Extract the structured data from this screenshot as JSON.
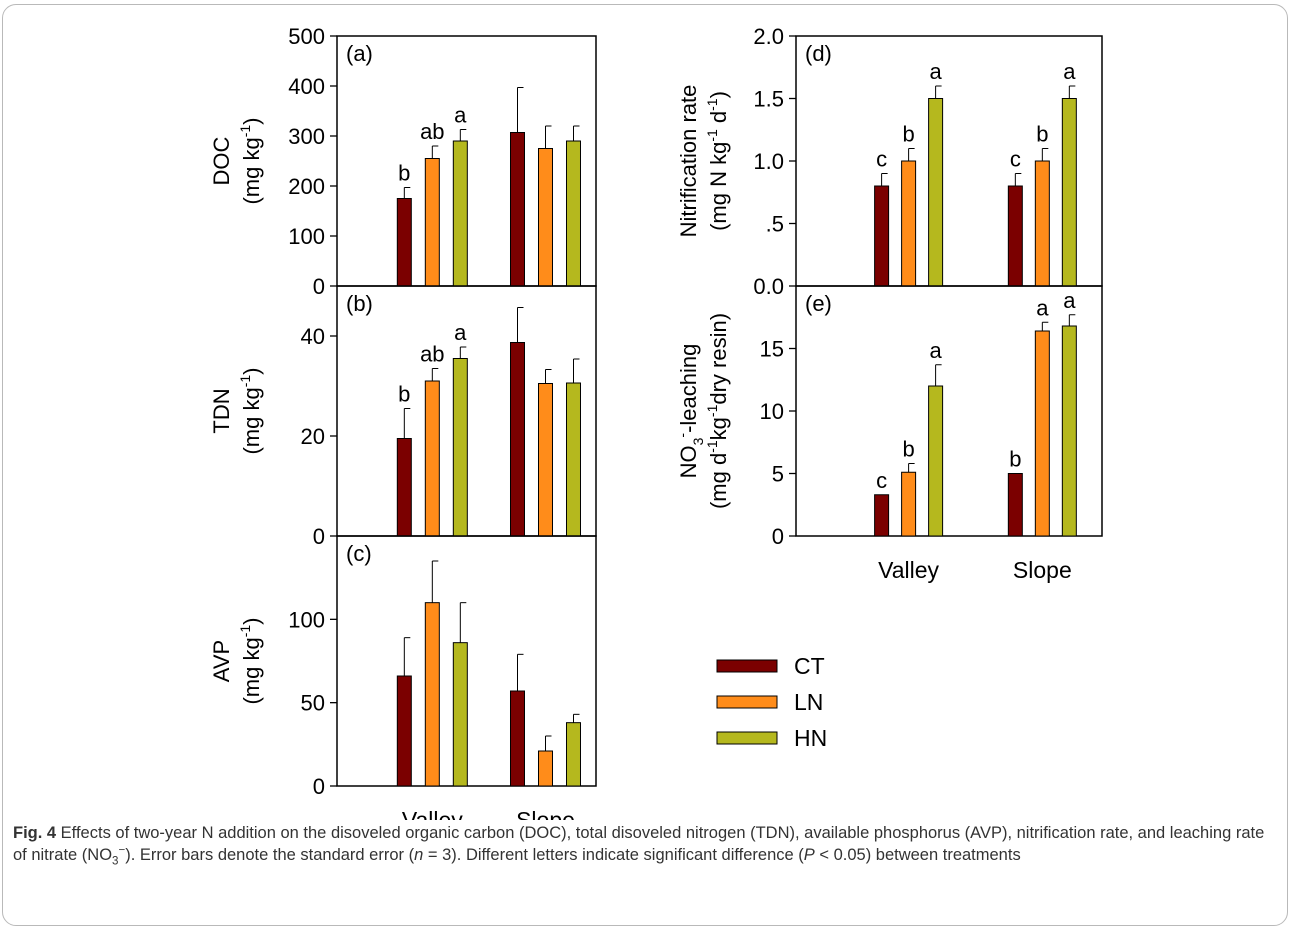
{
  "chart_data": [
    {
      "type": "bar",
      "panel_label": "(a)",
      "ylabel_lines": [
        "DOC",
        "(mg kg-1)"
      ],
      "categories": [
        "Valley",
        "Slope"
      ],
      "ylim": [
        0,
        500
      ],
      "yticks": [
        "0",
        "100",
        "200",
        "300",
        "400",
        "500"
      ],
      "series": [
        {
          "name": "CT",
          "values": [
            175,
            307
          ],
          "errors": [
            22,
            90
          ],
          "letters": [
            "b",
            ""
          ]
        },
        {
          "name": "LN",
          "values": [
            255,
            275
          ],
          "errors": [
            25,
            45
          ],
          "letters": [
            "ab",
            ""
          ]
        },
        {
          "name": "HN",
          "values": [
            290,
            290
          ],
          "errors": [
            23,
            30
          ],
          "letters": [
            "a",
            ""
          ]
        }
      ]
    },
    {
      "type": "bar",
      "panel_label": "(b)",
      "ylabel_lines": [
        "TDN",
        "(mg kg-1)"
      ],
      "categories": [
        "Valley",
        "Slope"
      ],
      "ylim": [
        0,
        50
      ],
      "yticks": [
        "0",
        "20",
        "40"
      ],
      "series": [
        {
          "name": "CT",
          "values": [
            19.5,
            38.7
          ],
          "errors": [
            6.0,
            7.0
          ],
          "letters": [
            "b",
            ""
          ]
        },
        {
          "name": "LN",
          "values": [
            31.0,
            30.5
          ],
          "errors": [
            2.5,
            2.8
          ],
          "letters": [
            "ab",
            ""
          ]
        },
        {
          "name": "HN",
          "values": [
            35.5,
            30.6
          ],
          "errors": [
            2.3,
            4.8
          ],
          "letters": [
            "a",
            ""
          ]
        }
      ]
    },
    {
      "type": "bar",
      "panel_label": "(c)",
      "ylabel_lines": [
        "AVP",
        "(mg kg-1)"
      ],
      "categories": [
        "Valley",
        "Slope"
      ],
      "ylim": [
        0,
        150
      ],
      "yticks": [
        "0",
        "50",
        "100"
      ],
      "series": [
        {
          "name": "CT",
          "values": [
            66,
            57
          ],
          "errors": [
            23,
            22
          ],
          "letters": [
            "",
            ""
          ]
        },
        {
          "name": "LN",
          "values": [
            110,
            21
          ],
          "errors": [
            25,
            9
          ],
          "letters": [
            "",
            ""
          ]
        },
        {
          "name": "HN",
          "values": [
            86,
            38
          ],
          "errors": [
            24,
            5
          ],
          "letters": [
            "",
            ""
          ]
        }
      ]
    },
    {
      "type": "bar",
      "panel_label": "(d)",
      "ylabel_lines": [
        "Nitrification rate",
        "(mg N kg-1 d-1)"
      ],
      "categories": [
        "Valley",
        "Slope"
      ],
      "ylim": [
        0,
        2.0
      ],
      "yticks": [
        "0.0",
        ".5",
        "1.0",
        "1.5",
        "2.0"
      ],
      "series": [
        {
          "name": "CT",
          "values": [
            0.8,
            0.8
          ],
          "errors": [
            0.1,
            0.1
          ],
          "letters": [
            "c",
            "c"
          ]
        },
        {
          "name": "LN",
          "values": [
            1.0,
            1.0
          ],
          "errors": [
            0.1,
            0.1
          ],
          "letters": [
            "b",
            "b"
          ]
        },
        {
          "name": "HN",
          "values": [
            1.5,
            1.5
          ],
          "errors": [
            0.1,
            0.1
          ],
          "letters": [
            "a",
            "a"
          ]
        }
      ]
    },
    {
      "type": "bar",
      "panel_label": "(e)",
      "ylabel_lines": [
        "NO3--leaching",
        "(mg d-1kg-1dry resin)"
      ],
      "categories": [
        "Valley",
        "Slope"
      ],
      "ylim": [
        0,
        20
      ],
      "yticks": [
        "0",
        "5",
        "10",
        "15"
      ],
      "series": [
        {
          "name": "CT",
          "values": [
            3.3,
            5.0
          ],
          "errors": [
            0.0,
            0.0
          ],
          "letters": [
            "c",
            "b"
          ]
        },
        {
          "name": "LN",
          "values": [
            5.1,
            16.4
          ],
          "errors": [
            0.7,
            0.7
          ],
          "letters": [
            "b",
            "a"
          ]
        },
        {
          "name": "HN",
          "values": [
            12.0,
            16.8
          ],
          "errors": [
            1.7,
            0.9
          ],
          "letters": [
            "a",
            "a"
          ]
        }
      ]
    }
  ],
  "legend": [
    {
      "name": "CT",
      "color": "#7b0000"
    },
    {
      "name": "LN",
      "color": "#ff8c1a"
    },
    {
      "name": "HN",
      "color": "#b5b81e"
    }
  ],
  "caption": {
    "label": "Fig. 4",
    "text_1": " Effects of two-year N addition on the disoveled organic carbon (DOC), total disoveled nitrogen (TDN), available phosphorus (AVP), nitrification rate, and leaching rate of nitrate (NO",
    "sub_1": "3",
    "sup_1": "−",
    "text_2": "). Error bars denote the standard error (",
    "n_italic": "n",
    "text_3": " = 3). Different letters indicate significant difference (",
    "p_italic": "P",
    "text_4": " < 0.05) between treatments"
  }
}
